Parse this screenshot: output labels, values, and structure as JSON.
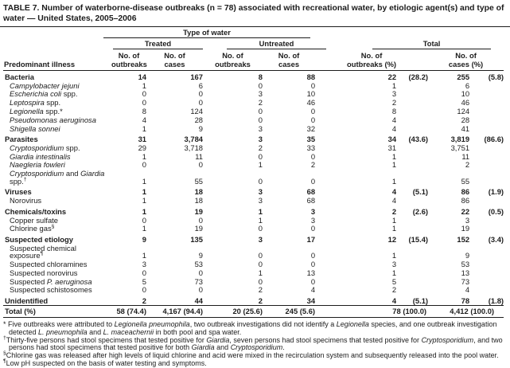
{
  "title": "TABLE 7. Number of waterborne-disease outbreaks (n = 78) associated with recreational water, by etiologic agent(s) and type of\nwater — United States, 2005–2006",
  "header": {
    "row_label": "Predominant illness",
    "type_of_water": "Type of water",
    "groups": {
      "treated": "Treated",
      "untreated": "Untreated",
      "total": "Total"
    },
    "subheaders": {
      "outbreaks": "No. of\noutbreaks",
      "cases": "No. of\ncases",
      "outbreaks_pct": "No. of\noutbreaks (%)",
      "cases_pct": "No. of\ncases (%)"
    }
  },
  "rows": [
    {
      "style": "category",
      "name": [
        {
          "t": "Bacteria"
        }
      ],
      "cells": [
        "14",
        "167",
        "8",
        "88",
        "22",
        "(28.2)",
        "255",
        "(5.8)"
      ]
    },
    {
      "style": "sub",
      "name": [
        {
          "t": "Campylobacter jejuni",
          "i": true
        }
      ],
      "cells": [
        "1",
        "6",
        "0",
        "0",
        "1",
        "",
        "6",
        ""
      ]
    },
    {
      "style": "sub",
      "name": [
        {
          "t": "Escherichia coli",
          "i": true
        },
        {
          "t": " spp."
        }
      ],
      "cells": [
        "0",
        "0",
        "3",
        "10",
        "3",
        "",
        "10",
        ""
      ]
    },
    {
      "style": "sub",
      "name": [
        {
          "t": "Leptospira",
          "i": true
        },
        {
          "t": " spp."
        }
      ],
      "cells": [
        "0",
        "0",
        "2",
        "46",
        "2",
        "",
        "46",
        ""
      ]
    },
    {
      "style": "sub",
      "name": [
        {
          "t": "Legionella",
          "i": true
        },
        {
          "t": " spp.*"
        }
      ],
      "cells": [
        "8",
        "124",
        "0",
        "0",
        "8",
        "",
        "124",
        ""
      ]
    },
    {
      "style": "sub",
      "name": [
        {
          "t": "Pseudomonas aeruginosa",
          "i": true
        }
      ],
      "cells": [
        "4",
        "28",
        "0",
        "0",
        "4",
        "",
        "28",
        ""
      ]
    },
    {
      "style": "sub",
      "name": [
        {
          "t": "Shigella sonnei",
          "i": true
        }
      ],
      "cells": [
        "1",
        "9",
        "3",
        "32",
        "4",
        "",
        "41",
        ""
      ]
    },
    {
      "style": "category",
      "name": [
        {
          "t": "Parasites"
        }
      ],
      "cells": [
        "31",
        "3,784",
        "3",
        "35",
        "34",
        "(43.6)",
        "3,819",
        "(86.6)"
      ]
    },
    {
      "style": "sub",
      "name": [
        {
          "t": "Cryptosporidium",
          "i": true
        },
        {
          "t": " spp."
        }
      ],
      "cells": [
        "29",
        "3,718",
        "2",
        "33",
        "31",
        "",
        "3,751",
        ""
      ]
    },
    {
      "style": "sub",
      "name": [
        {
          "t": "Giardia intestinalis",
          "i": true
        }
      ],
      "cells": [
        "1",
        "11",
        "0",
        "0",
        "1",
        "",
        "11",
        ""
      ]
    },
    {
      "style": "sub",
      "name": [
        {
          "t": "Naegleria fowleri",
          "i": true
        }
      ],
      "cells": [
        "0",
        "0",
        "1",
        "2",
        "1",
        "",
        "2",
        ""
      ]
    },
    {
      "style": "sub",
      "name": [
        {
          "t": "Cryptosporidium",
          "i": true
        },
        {
          "t": " and "
        },
        {
          "t": "Giardia",
          "i": true
        },
        {
          "t": " spp."
        },
        {
          "t": "†",
          "sup": true
        }
      ],
      "cells": [
        "1",
        "55",
        "0",
        "0",
        "1",
        "",
        "55",
        ""
      ]
    },
    {
      "style": "category",
      "name": [
        {
          "t": "Viruses"
        }
      ],
      "cells": [
        "1",
        "18",
        "3",
        "68",
        "4",
        "(5.1)",
        "86",
        "(1.9)"
      ]
    },
    {
      "style": "sub",
      "name": [
        {
          "t": "Norovirus"
        }
      ],
      "cells": [
        "1",
        "18",
        "3",
        "68",
        "4",
        "",
        "86",
        ""
      ]
    },
    {
      "style": "category",
      "name": [
        {
          "t": "Chemicals/toxins"
        }
      ],
      "cells": [
        "1",
        "19",
        "1",
        "3",
        "2",
        "(2.6)",
        "22",
        "(0.5)"
      ]
    },
    {
      "style": "sub",
      "name": [
        {
          "t": "Copper sulfate"
        }
      ],
      "cells": [
        "0",
        "0",
        "1",
        "3",
        "1",
        "",
        "3",
        ""
      ]
    },
    {
      "style": "sub",
      "name": [
        {
          "t": "Chlorine gas"
        },
        {
          "t": "§",
          "sup": true
        }
      ],
      "cells": [
        "1",
        "19",
        "0",
        "0",
        "1",
        "",
        "19",
        ""
      ]
    },
    {
      "style": "category",
      "name": [
        {
          "t": "Suspected etiology"
        }
      ],
      "cells": [
        "9",
        "135",
        "3",
        "17",
        "12",
        "(15.4)",
        "152",
        "(3.4)"
      ]
    },
    {
      "style": "sub",
      "name": [
        {
          "t": "Suspected chemical exposure"
        },
        {
          "t": "¶",
          "sup": true
        }
      ],
      "cells": [
        "1",
        "9",
        "0",
        "0",
        "1",
        "",
        "9",
        ""
      ]
    },
    {
      "style": "sub",
      "name": [
        {
          "t": "Suspected chloramines"
        }
      ],
      "cells": [
        "3",
        "53",
        "0",
        "0",
        "3",
        "",
        "53",
        ""
      ]
    },
    {
      "style": "sub",
      "name": [
        {
          "t": "Suspected norovirus"
        }
      ],
      "cells": [
        "0",
        "0",
        "1",
        "13",
        "1",
        "",
        "13",
        ""
      ]
    },
    {
      "style": "sub",
      "name": [
        {
          "t": "Suspected "
        },
        {
          "t": "P. aeruginosa",
          "i": true
        }
      ],
      "cells": [
        "5",
        "73",
        "0",
        "0",
        "5",
        "",
        "73",
        ""
      ]
    },
    {
      "style": "sub",
      "name": [
        {
          "t": "Suspected schistosomes"
        }
      ],
      "cells": [
        "0",
        "0",
        "2",
        "4",
        "2",
        "",
        "4",
        ""
      ]
    },
    {
      "style": "category",
      "name": [
        {
          "t": "Unidentified"
        }
      ],
      "cells": [
        "2",
        "44",
        "2",
        "34",
        "4",
        "(5.1)",
        "78",
        "(1.8)"
      ]
    }
  ],
  "total_row": {
    "label": "Total (%)",
    "treated_outbreaks": "58 (74.4)",
    "treated_cases": "4,167 (94.4)",
    "untreated_outbreaks": "20 (25.6)",
    "untreated_cases": "245 (5.6)",
    "total_outbreaks": "78 (100.0)",
    "total_cases": "4,412 (100.0)"
  },
  "footnotes": [
    {
      "marker": "*",
      "space_after_marker": true,
      "segments": [
        {
          "t": "Five outbreaks were attributed to "
        },
        {
          "t": "Legionella pneumophila",
          "i": true
        },
        {
          "t": ", two outbreak investigations did not identify a "
        },
        {
          "t": "Legionella",
          "i": true
        },
        {
          "t": " species, and one outbreak investigation detected "
        },
        {
          "t": "L. pneumophila",
          "i": true
        },
        {
          "t": " and "
        },
        {
          "t": "L. maceachernii",
          "i": true
        },
        {
          "t": " in both pool and spa water."
        }
      ]
    },
    {
      "marker": "†",
      "space_after_marker": false,
      "segments": [
        {
          "t": "Thirty-five persons had stool specimens that tested positive for "
        },
        {
          "t": "Giardia",
          "i": true
        },
        {
          "t": ", seven persons had stool specimens that tested positive for "
        },
        {
          "t": "Cryptosporidium",
          "i": true
        },
        {
          "t": ", and two persons had stool specimens that tested positive for both "
        },
        {
          "t": "Giardia",
          "i": true
        },
        {
          "t": " and "
        },
        {
          "t": "Cryptosporidium",
          "i": true
        },
        {
          "t": "."
        }
      ]
    },
    {
      "marker": "§",
      "space_after_marker": false,
      "segments": [
        {
          "t": "Chlorine gas was released after high levels of liquid chlorine and acid were mixed in the recirculation system and subsequently released into the pool water."
        }
      ]
    },
    {
      "marker": "¶",
      "space_after_marker": false,
      "segments": [
        {
          "t": "Low pH suspected on the basis of water testing and symptoms."
        }
      ]
    }
  ]
}
